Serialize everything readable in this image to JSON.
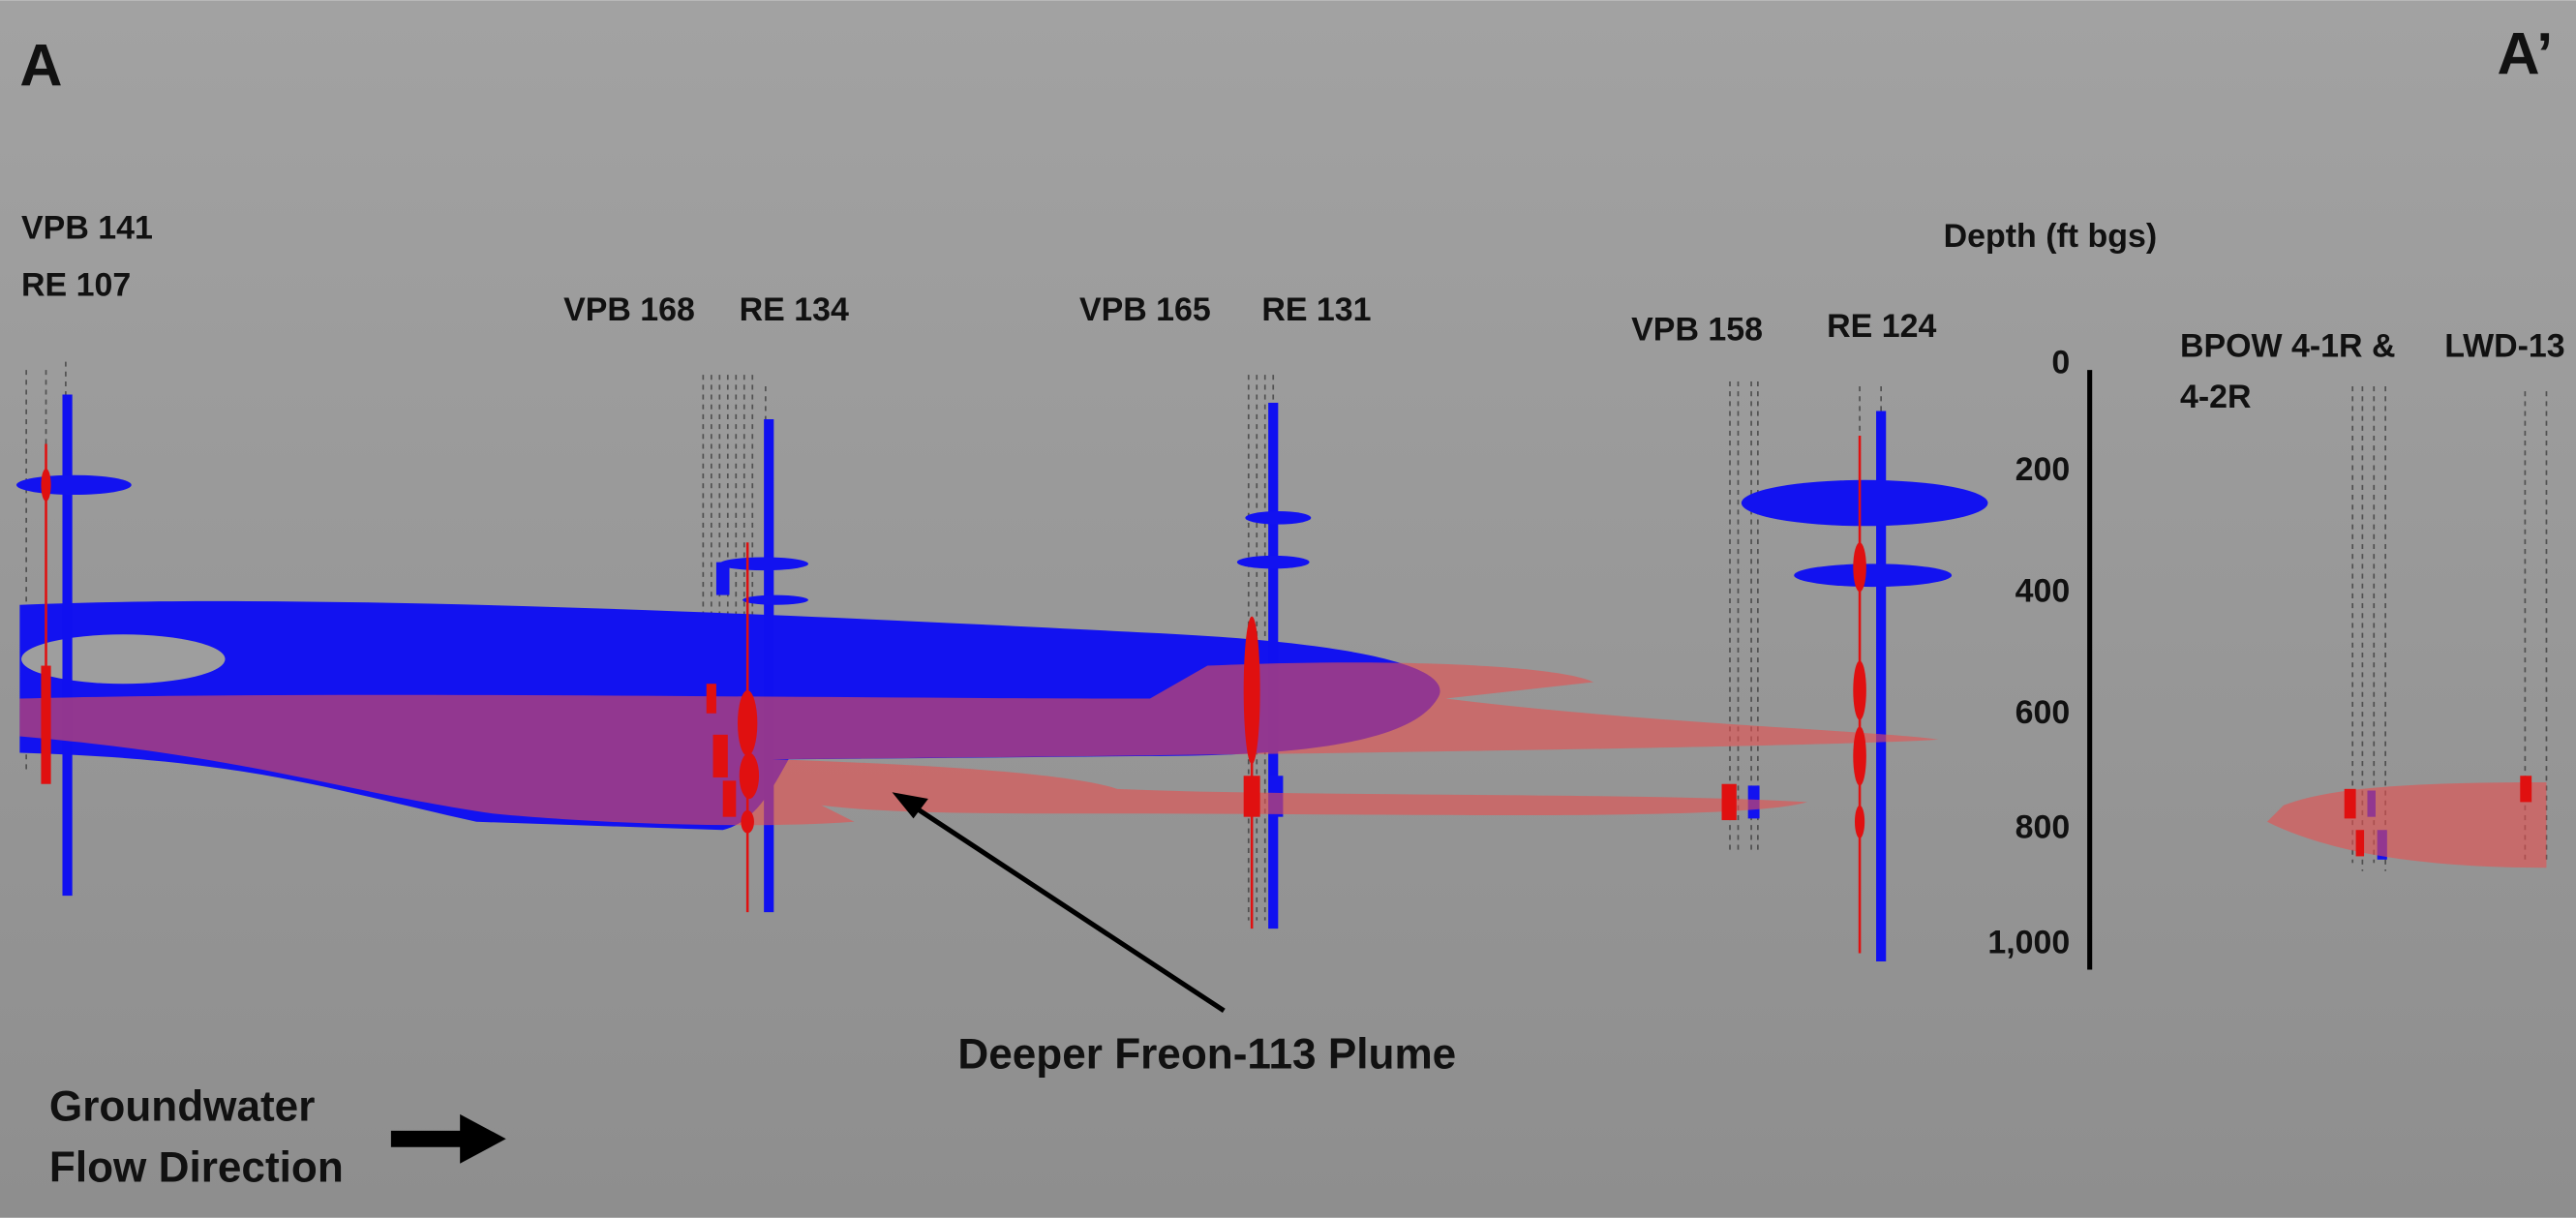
{
  "section": {
    "start": "A",
    "end": "A’"
  },
  "wells": [
    {
      "label": "VPB 141"
    },
    {
      "label": "RE 107"
    },
    {
      "label": "VPB 168"
    },
    {
      "label": "RE 134"
    },
    {
      "label": "VPB 165"
    },
    {
      "label": "RE 131"
    },
    {
      "label": "VPB 158"
    },
    {
      "label": "RE 124"
    },
    {
      "label": [
        "BPOW 4-1R &",
        "4-2R"
      ]
    },
    {
      "label": "LWD-13"
    }
  ],
  "depth_axis": {
    "title": "Depth (ft bgs)",
    "ticks": [
      "0",
      "200",
      "400",
      "600",
      "800",
      "1,000"
    ]
  },
  "annotation": "Deeper Freon-113 Plume",
  "legend": {
    "lines": [
      "Groundwater",
      "Flow Direction"
    ]
  }
}
